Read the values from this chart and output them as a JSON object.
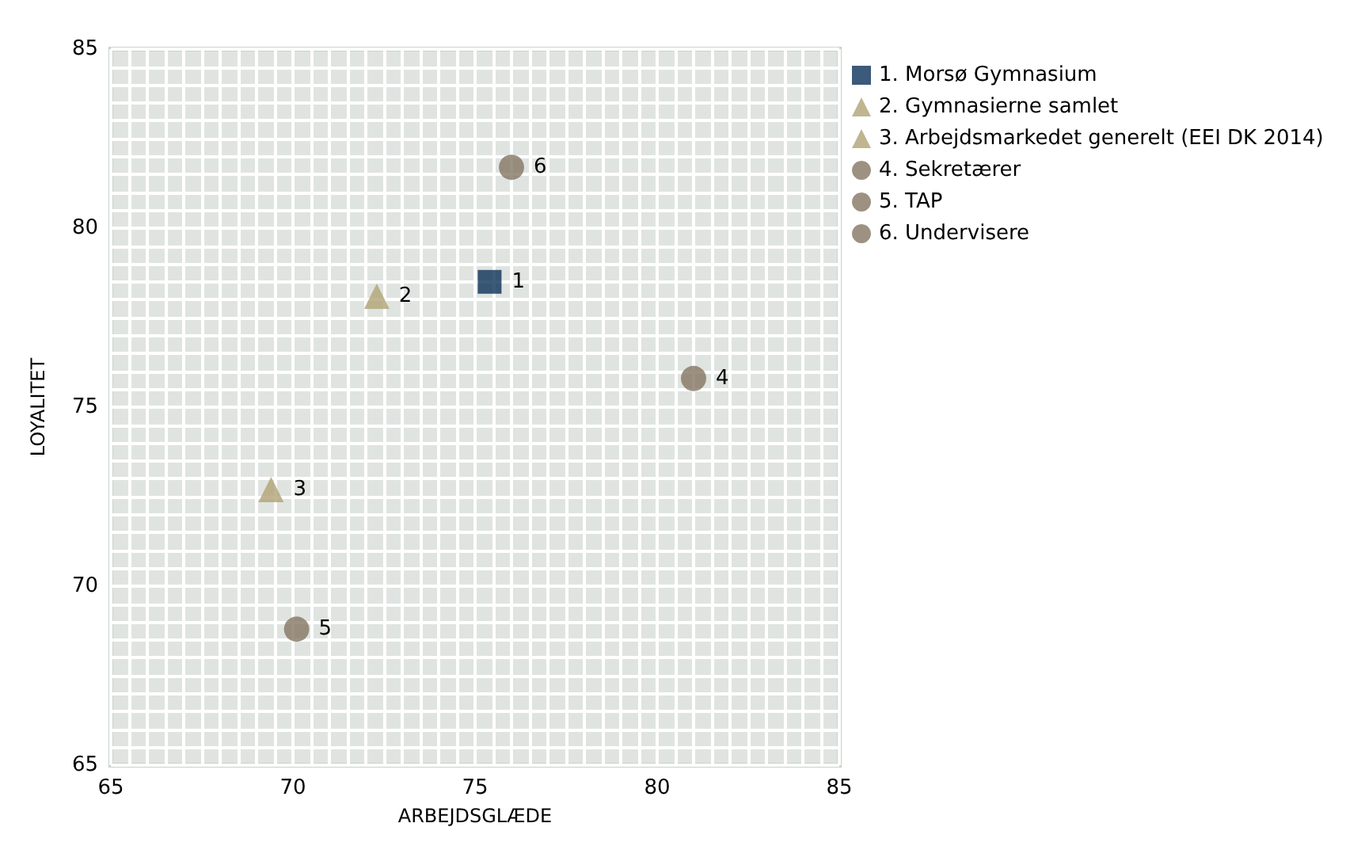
{
  "chart_data": {
    "type": "scatter",
    "xlabel": "ARBEJDSGLÆDE",
    "ylabel": "LOYALITET",
    "xlim": [
      65,
      85
    ],
    "xticks": [
      65,
      70,
      75,
      80,
      85
    ],
    "ylim": [
      65,
      85
    ],
    "yticks": [
      65,
      70,
      75,
      80,
      85
    ],
    "grid": true,
    "legend": "top right",
    "series": [
      {
        "name": "1. Morsø Gymnasium",
        "color": "#0b3157",
        "marker": "square",
        "x": [
          75.4
        ],
        "values": [
          78.5
        ]
      },
      {
        "name": "2. Gymnasierne samlet",
        "color": "#b0a274",
        "marker": "triangle",
        "x": [
          72.3
        ],
        "values": [
          78.1
        ]
      },
      {
        "name": "3. Arbejdsmarkedet generelt (EEI DK 2014)",
        "color": "#b0a274",
        "marker": "triangle",
        "x": [
          69.4
        ],
        "values": [
          72.7
        ]
      },
      {
        "name": "4. Sekretærer",
        "color": "#857563",
        "marker": "circle",
        "x": [
          81.0
        ],
        "values": [
          75.8
        ]
      },
      {
        "name": "5. TAP",
        "color": "#857563",
        "marker": "circle",
        "x": [
          70.1
        ],
        "values": [
          68.8
        ]
      },
      {
        "name": "6. Undervisere",
        "color": "#857563",
        "marker": "circle",
        "x": [
          76.0
        ],
        "values": [
          81.7
        ]
      }
    ],
    "annotations": [
      {
        "text": "1",
        "x": 75.4,
        "y": 78.5
      },
      {
        "text": "2",
        "x": 72.3,
        "y": 78.1
      },
      {
        "text": "3",
        "x": 69.4,
        "y": 72.7
      },
      {
        "text": "4",
        "x": 81.0,
        "y": 75.8
      },
      {
        "text": "5",
        "x": 70.1,
        "y": 68.8
      },
      {
        "text": "6",
        "x": 76.0,
        "y": 81.7
      }
    ]
  }
}
